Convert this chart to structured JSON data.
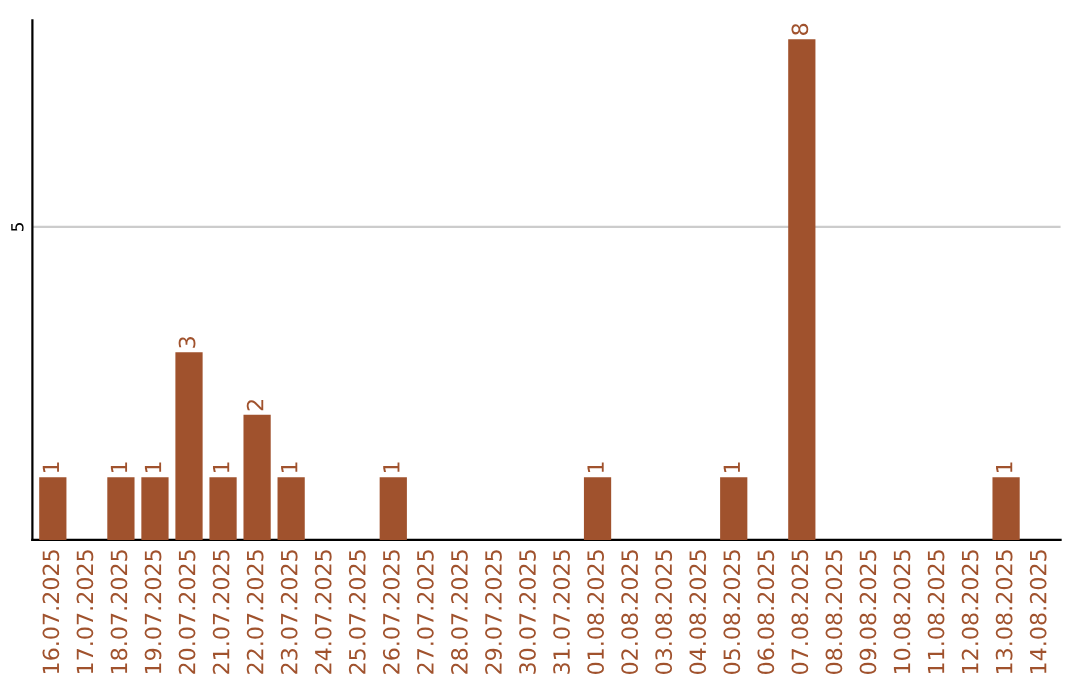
{
  "chart_data": {
    "type": "bar",
    "categories": [
      "16.07.2025",
      "17.07.2025",
      "18.07.2025",
      "19.07.2025",
      "20.07.2025",
      "21.07.2025",
      "22.07.2025",
      "23.07.2025",
      "24.07.2025",
      "25.07.2025",
      "26.07.2025",
      "27.07.2025",
      "28.07.2025",
      "29.07.2025",
      "30.07.2025",
      "31.07.2025",
      "01.08.2025",
      "02.08.2025",
      "03.08.2025",
      "04.08.2025",
      "05.08.2025",
      "06.08.2025",
      "07.08.2025",
      "08.08.2025",
      "09.08.2025",
      "10.08.2025",
      "11.08.2025",
      "12.08.2025",
      "13.08.2025",
      "14.08.2025"
    ],
    "values": [
      1,
      0,
      1,
      1,
      3,
      1,
      2,
      1,
      0,
      0,
      1,
      0,
      0,
      0,
      0,
      0,
      1,
      0,
      0,
      0,
      1,
      0,
      8,
      0,
      0,
      0,
      0,
      0,
      1,
      0
    ],
    "value_labels": [
      "1",
      null,
      "1",
      "1",
      "3",
      "1",
      "2",
      "1",
      null,
      null,
      "1",
      null,
      null,
      null,
      null,
      null,
      "1",
      null,
      null,
      null,
      "1",
      null,
      "8",
      null,
      null,
      null,
      null,
      null,
      "1",
      null
    ],
    "color": "#a0522d",
    "ylim": [
      0,
      8.3
    ],
    "yticks": [
      5
    ],
    "grid": "y"
  }
}
